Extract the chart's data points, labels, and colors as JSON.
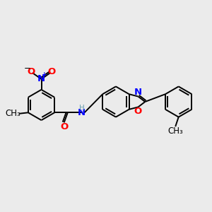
{
  "bg_color": "#ebebeb",
  "bond_lw": 1.4,
  "font_size": 8.5,
  "ring_r": 0.72,
  "xlim": [
    0,
    10
  ],
  "ylim": [
    0,
    10
  ]
}
